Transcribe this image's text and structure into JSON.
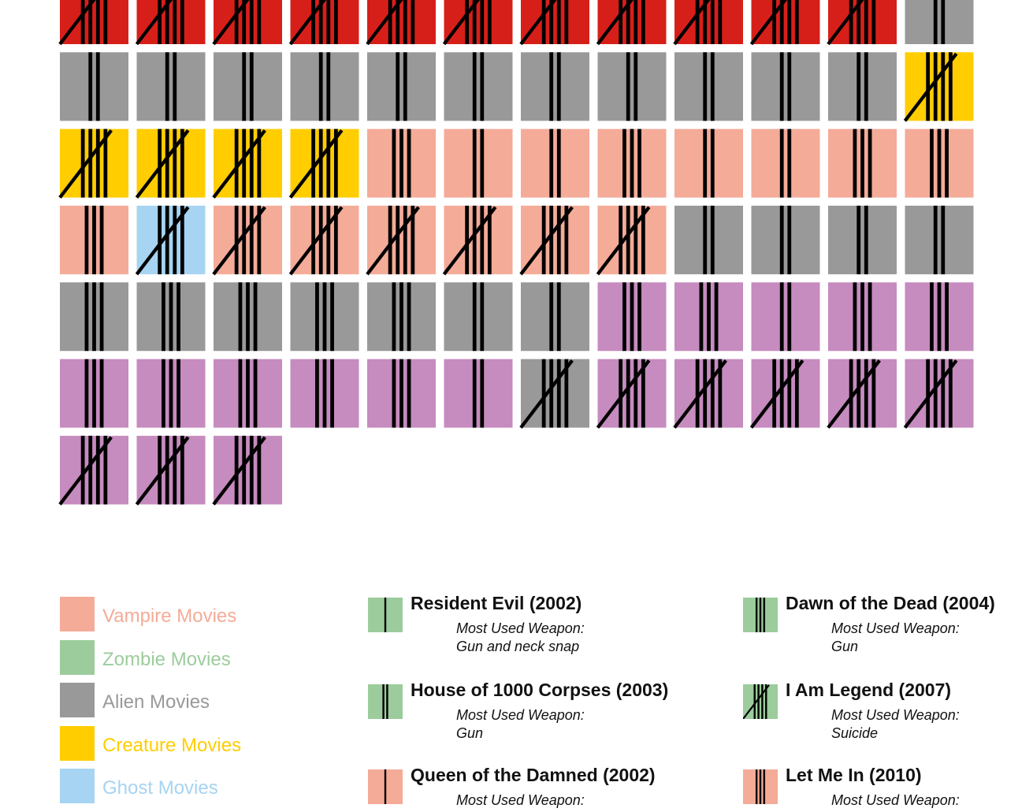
{
  "colors": {
    "vampire": "#f4ab98",
    "zombie": "#9ccc9c",
    "alien": "#999999",
    "creature": "#ffcd00",
    "ghost": "#a6d4f2",
    "red": "#d71f1a",
    "purple": "#c68bbf",
    "mark": "#000000"
  },
  "chart_data": {
    "type": "tally-grid",
    "columns": 12,
    "cells": [
      {
        "color": "red",
        "tally": 5
      },
      {
        "color": "red",
        "tally": 5
      },
      {
        "color": "red",
        "tally": 5
      },
      {
        "color": "red",
        "tally": 5
      },
      {
        "color": "red",
        "tally": 5
      },
      {
        "color": "red",
        "tally": 5
      },
      {
        "color": "red",
        "tally": 5
      },
      {
        "color": "red",
        "tally": 5
      },
      {
        "color": "red",
        "tally": 5
      },
      {
        "color": "red",
        "tally": 5
      },
      {
        "color": "red",
        "tally": 5
      },
      {
        "color": "alien",
        "tally": 2
      },
      {
        "color": "alien",
        "tally": 2
      },
      {
        "color": "alien",
        "tally": 2
      },
      {
        "color": "alien",
        "tally": 2
      },
      {
        "color": "alien",
        "tally": 2
      },
      {
        "color": "alien",
        "tally": 2
      },
      {
        "color": "alien",
        "tally": 2
      },
      {
        "color": "alien",
        "tally": 2
      },
      {
        "color": "alien",
        "tally": 2
      },
      {
        "color": "alien",
        "tally": 2
      },
      {
        "color": "alien",
        "tally": 2
      },
      {
        "color": "alien",
        "tally": 2
      },
      {
        "color": "creature",
        "tally": 5
      },
      {
        "color": "creature",
        "tally": 5
      },
      {
        "color": "creature",
        "tally": 5
      },
      {
        "color": "creature",
        "tally": 5
      },
      {
        "color": "creature",
        "tally": 5
      },
      {
        "color": "vampire",
        "tally": 3
      },
      {
        "color": "vampire",
        "tally": 2
      },
      {
        "color": "vampire",
        "tally": 2
      },
      {
        "color": "vampire",
        "tally": 3
      },
      {
        "color": "vampire",
        "tally": 2
      },
      {
        "color": "vampire",
        "tally": 2
      },
      {
        "color": "vampire",
        "tally": 3
      },
      {
        "color": "vampire",
        "tally": 3
      },
      {
        "color": "vampire",
        "tally": 3
      },
      {
        "color": "ghost",
        "tally": 5
      },
      {
        "color": "vampire",
        "tally": 5
      },
      {
        "color": "vampire",
        "tally": 5
      },
      {
        "color": "vampire",
        "tally": 5
      },
      {
        "color": "vampire",
        "tally": 5
      },
      {
        "color": "vampire",
        "tally": 5
      },
      {
        "color": "vampire",
        "tally": 5
      },
      {
        "color": "alien",
        "tally": 2
      },
      {
        "color": "alien",
        "tally": 2
      },
      {
        "color": "alien",
        "tally": 2
      },
      {
        "color": "alien",
        "tally": 2
      },
      {
        "color": "alien",
        "tally": 3
      },
      {
        "color": "alien",
        "tally": 3
      },
      {
        "color": "alien",
        "tally": 3
      },
      {
        "color": "alien",
        "tally": 3
      },
      {
        "color": "alien",
        "tally": 3
      },
      {
        "color": "alien",
        "tally": 2
      },
      {
        "color": "alien",
        "tally": 2
      },
      {
        "color": "purple",
        "tally": 3
      },
      {
        "color": "purple",
        "tally": 3
      },
      {
        "color": "purple",
        "tally": 2
      },
      {
        "color": "purple",
        "tally": 3
      },
      {
        "color": "purple",
        "tally": 3
      },
      {
        "color": "purple",
        "tally": 3
      },
      {
        "color": "purple",
        "tally": 3
      },
      {
        "color": "purple",
        "tally": 3
      },
      {
        "color": "purple",
        "tally": 3
      },
      {
        "color": "purple",
        "tally": 3
      },
      {
        "color": "purple",
        "tally": 2
      },
      {
        "color": "alien",
        "tally": 5
      },
      {
        "color": "purple",
        "tally": 5
      },
      {
        "color": "purple",
        "tally": 5
      },
      {
        "color": "purple",
        "tally": 5
      },
      {
        "color": "purple",
        "tally": 5
      },
      {
        "color": "purple",
        "tally": 5
      },
      {
        "color": "purple",
        "tally": 5
      },
      {
        "color": "purple",
        "tally": 5
      },
      {
        "color": "purple",
        "tally": 5
      }
    ]
  },
  "categories": [
    {
      "label": "Vampire Movies",
      "color": "vampire"
    },
    {
      "label": "Zombie Movies",
      "color": "zombie"
    },
    {
      "label": "Alien Movies",
      "color": "alien"
    },
    {
      "label": "Creature Movies",
      "color": "creature"
    },
    {
      "label": "Ghost Movies",
      "color": "ghost"
    }
  ],
  "weapon_label": "Most Used Weapon:",
  "movies": [
    {
      "title": "Resident Evil (2002)",
      "weapon": "Gun and neck snap",
      "color": "zombie",
      "tally": 1
    },
    {
      "title": "House of 1000 Corpses (2003)",
      "weapon": "Gun",
      "color": "zombie",
      "tally": 2
    },
    {
      "title": "Queen of the Damned (2002)",
      "weapon": "",
      "color": "vampire",
      "tally": 1
    },
    {
      "title": "Dawn of the Dead (2004)",
      "weapon": "Gun",
      "color": "zombie",
      "tally": 3
    },
    {
      "title": "I Am Legend (2007)",
      "weapon": "Suicide",
      "color": "zombie",
      "tally": 5
    },
    {
      "title": "Let Me In (2010)",
      "weapon": "",
      "color": "vampire",
      "tally": 3
    }
  ]
}
